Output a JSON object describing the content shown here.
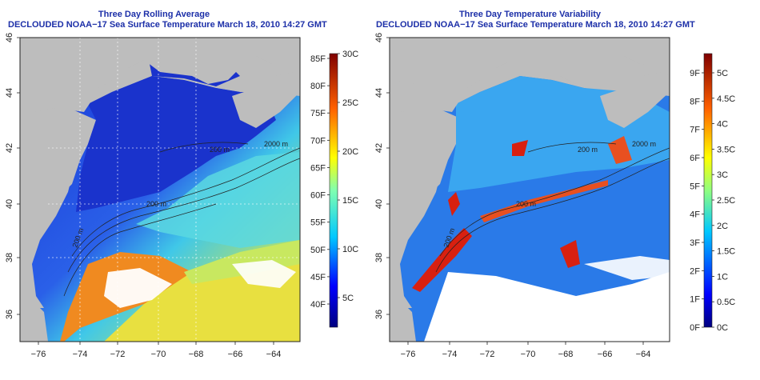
{
  "left": {
    "title_line1": "Three Day Rolling Average",
    "title_line2": "DECLOUDED NOAA−17 Sea Surface Temperature March 18, 2010 14:27 GMT",
    "lat_ticks": [
      "36",
      "38",
      "40",
      "42",
      "44",
      "46"
    ],
    "lon_ticks": [
      "−76",
      "−74",
      "−72",
      "−70",
      "−68",
      "−66",
      "−64"
    ],
    "colorbar_f": [
      "40F",
      "45F",
      "50F",
      "55F",
      "60F",
      "65F",
      "70F",
      "75F",
      "80F",
      "85F"
    ],
    "colorbar_c": [
      "5C",
      "10C",
      "15C",
      "20C",
      "25C",
      "30C"
    ],
    "contour_labels": [
      "200 m",
      "200 m",
      "200 m",
      "2000 m"
    ]
  },
  "right": {
    "title_line1": "Three Day Temperature Variability",
    "title_line2": "DECLOUDED NOAA−17 Sea Surface Temperature March 18, 2010 14:27 GMT",
    "lat_ticks": [
      "36",
      "38",
      "40",
      "42",
      "44",
      "46"
    ],
    "lon_ticks": [
      "−76",
      "−74",
      "−72",
      "−70",
      "−68",
      "−66",
      "−64"
    ],
    "colorbar_f": [
      "0F",
      "1F",
      "2F",
      "3F",
      "4F",
      "5F",
      "6F",
      "7F",
      "8F",
      "9F"
    ],
    "colorbar_c": [
      "0C",
      "0.5C",
      "1C",
      "1.5C",
      "2C",
      "2.5C",
      "3C",
      "3.5C",
      "4C",
      "4.5C",
      "5C"
    ],
    "contour_labels": [
      "200 m",
      "200 m",
      "200 m",
      "2000 m"
    ]
  },
  "colors": {
    "title": "#1c2fa8",
    "land": "#bdbdbd",
    "cold": "#1030c8",
    "warm": "#e85010"
  }
}
